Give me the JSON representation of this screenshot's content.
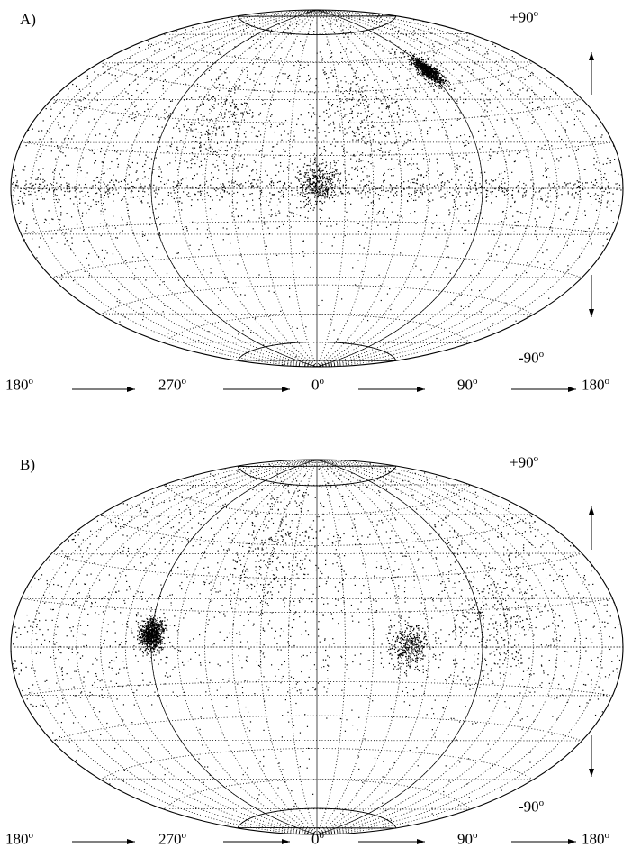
{
  "panels": [
    {
      "tag": "A)",
      "top_label": "+90",
      "bottom_label": "-90",
      "longitudes": [
        "180",
        "270",
        "0",
        "90",
        "180"
      ],
      "degree_symbol": "o",
      "clusters": [
        {
          "lon": 90,
          "lat": 52,
          "weight": "dense"
        },
        {
          "lon": 0,
          "lat": 2,
          "weight": "moderate"
        },
        {
          "lon": 300,
          "lat": 30,
          "weight": "sparse"
        },
        {
          "lon": 30,
          "lat": 30,
          "weight": "sparse"
        }
      ],
      "band": "equator"
    },
    {
      "tag": "B)",
      "top_label": "+90",
      "bottom_label": "-90",
      "longitudes": [
        "180",
        "270",
        "0",
        "90",
        "180"
      ],
      "degree_symbol": "o",
      "clusters": [
        {
          "lon": 270,
          "lat": 5,
          "weight": "dense"
        },
        {
          "lon": 50,
          "lat": 0,
          "weight": "moderate"
        },
        {
          "lon": 330,
          "lat": 40,
          "weight": "sparse"
        },
        {
          "lon": 100,
          "lat": 10,
          "weight": "sparse"
        }
      ],
      "band": "none"
    }
  ]
}
